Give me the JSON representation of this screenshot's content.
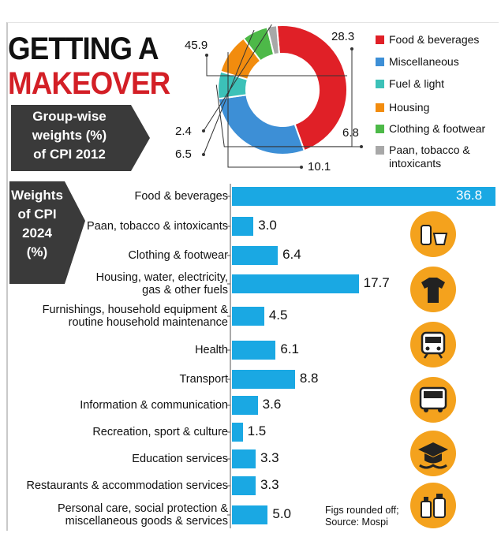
{
  "headline": {
    "line1": "GETTING A",
    "line2": "MAKEOVER"
  },
  "subtitle": {
    "line1": "Group-wise",
    "line2": "weights (%)",
    "line3": "of CPI 2012"
  },
  "cpi2024_label": {
    "line1": "Weights",
    "line2": "of CPI",
    "line3": "2024",
    "line4": "(%)"
  },
  "footnote": {
    "line1": "Figs rounded off;",
    "line2": "Source: Mospi"
  },
  "colors": {
    "food": "#e02027",
    "misc": "#3d8fd6",
    "fuel": "#3cc1b8",
    "housing": "#f28c0e",
    "clothing": "#4db948",
    "paan": "#a8a8a8",
    "bar": "#1aa8e3",
    "headline_red": "#d31f26",
    "panel": "#3a3a3a",
    "icon_bg": "#f4a21d"
  },
  "icons": [
    "food-drink-icon",
    "clothing-icon",
    "transport-icon",
    "bus-train-icon",
    "education-icon",
    "personal-care-icon"
  ],
  "chart_data": [
    {
      "type": "pie",
      "title": "Group-wise weights (%) of CPI 2012",
      "donut": true,
      "categories": [
        "Food & beverages",
        "Miscellaneous",
        "Fuel & light",
        "Housing",
        "Clothing & footwear",
        "Paan, tobacco & intoxicants"
      ],
      "values": [
        45.9,
        28.3,
        6.8,
        10.1,
        6.5,
        2.4
      ],
      "value_labels": [
        "45.9",
        "28.3",
        "6.8",
        "10.1",
        "6.5",
        "2.4"
      ],
      "legend": [
        "Food & beverages",
        "Miscellaneous",
        "Fuel & light",
        "Housing",
        "Clothing & footwear",
        "Paan, tobacco & intoxicants"
      ],
      "legend_position": "right"
    },
    {
      "type": "bar",
      "orientation": "horizontal",
      "title": "Weights of CPI 2024 (%)",
      "categories": [
        [
          "Food & beverages"
        ],
        [
          "Paan, tobacco & intoxicants"
        ],
        [
          "Clothing & footwear"
        ],
        [
          "Housing, water, electricity,",
          "gas & other fuels"
        ],
        [
          "Furnishings, household equipment &",
          "routine household maintenance"
        ],
        [
          "Health"
        ],
        [
          "Transport"
        ],
        [
          "Information & communication"
        ],
        [
          "Recreation, sport & culture"
        ],
        [
          "Education services"
        ],
        [
          "Restaurants & accommodation services"
        ],
        [
          "Personal care, social protection &",
          "miscellaneous goods & services"
        ]
      ],
      "values": [
        36.8,
        3.0,
        6.4,
        17.7,
        4.5,
        6.1,
        8.8,
        3.6,
        1.5,
        3.3,
        3.3,
        5.0
      ],
      "value_labels": [
        "36.8",
        "3.0",
        "6.4",
        "17.7",
        "4.5",
        "6.1",
        "8.8",
        "3.6",
        "1.5",
        "3.3",
        "3.3",
        "5.0"
      ],
      "xlim": [
        0,
        36.8
      ]
    }
  ]
}
